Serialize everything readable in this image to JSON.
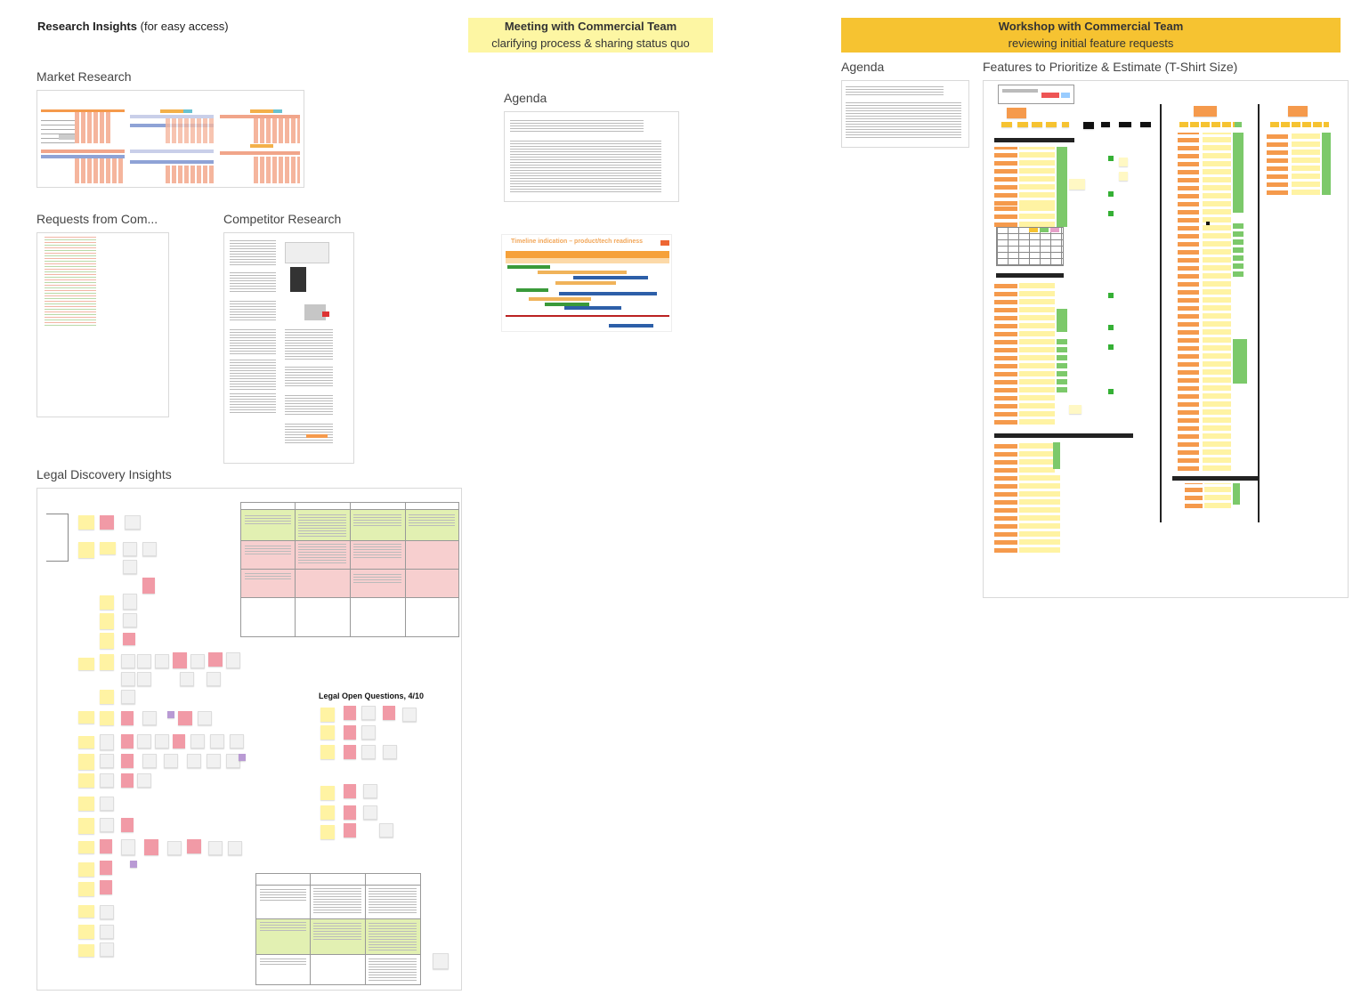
{
  "header": {
    "research_title": "Research Insights",
    "research_subtitle": "(for easy access)"
  },
  "research": {
    "market_research": "Market Research",
    "requests": "Requests from Com...",
    "competitor": "Competitor Research",
    "legal": "Legal Discovery Insights",
    "legal_open_questions": "Legal Open Questions, 4/10"
  },
  "meeting": {
    "title": "Meeting with Commercial Team",
    "subtitle": "clarifying process & sharing status quo",
    "agenda_label": "Agenda",
    "timeline_title": "Timeline indication – product/tech readiness",
    "banner_color": "#fdf6a3"
  },
  "workshop": {
    "title": "Workshop with Commercial Team",
    "subtitle": "reviewing initial feature requests",
    "agenda_label": "Agenda",
    "features_label": "Features to Prioritize & Estimate (T-Shirt Size)",
    "banner_color": "#f6c331"
  }
}
